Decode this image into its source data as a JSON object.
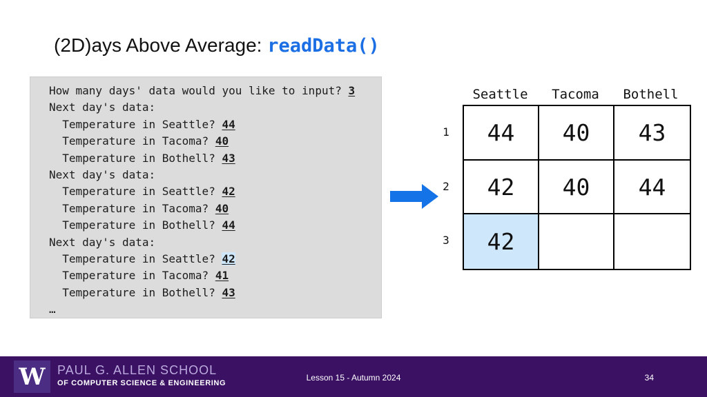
{
  "title": {
    "prefix": "(2D)ays Above Average: ",
    "code": "readData()"
  },
  "console": {
    "lines": [
      {
        "text": "How many days' data would you like to input? ",
        "input": "3"
      },
      {
        "text": "Next day's data:"
      },
      {
        "text": "  Temperature in Seattle? ",
        "input": "44"
      },
      {
        "text": "  Temperature in Tacoma? ",
        "input": "40"
      },
      {
        "text": "  Temperature in Bothell? ",
        "input": "43"
      },
      {
        "text": "Next day's data:"
      },
      {
        "text": "  Temperature in Seattle? ",
        "input": "42"
      },
      {
        "text": "  Temperature in Tacoma? ",
        "input": "40"
      },
      {
        "text": "  Temperature in Bothell? ",
        "input": "44"
      },
      {
        "text": "Next day's data:"
      },
      {
        "text": "  Temperature in Seattle? ",
        "input": "42",
        "highlight": true
      },
      {
        "text": "  Temperature in Tacoma? ",
        "input": "41"
      },
      {
        "text": "  Temperature in Bothell? ",
        "input": "43"
      },
      {
        "text": "…"
      }
    ]
  },
  "table": {
    "columns": [
      "Seattle",
      "Tacoma",
      "Bothell"
    ],
    "row_labels": [
      "1",
      "2",
      "3"
    ],
    "cells": [
      [
        "44",
        "40",
        "43"
      ],
      [
        "42",
        "40",
        "44"
      ],
      [
        "42",
        "",
        ""
      ]
    ],
    "highlight_cell": {
      "row": 2,
      "col": 0
    },
    "arrow_row": 1
  },
  "footer": {
    "logo_letter": "W",
    "school_line1": "PAUL G. ALLEN SCHOOL",
    "school_line2": "OF COMPUTER SCIENCE & ENGINEERING",
    "center_text": "Lesson 15 - Autumn 2024",
    "page_number": "34"
  },
  "colors": {
    "accent_blue": "#1b6ee3",
    "arrow_blue": "#1573e8",
    "console_bg": "#dcdcdc",
    "highlight_blue": "#cfe7fa",
    "footer_purple": "#3b1164",
    "logo_purple": "#4b2e83",
    "school_lavender": "#bcaade"
  }
}
